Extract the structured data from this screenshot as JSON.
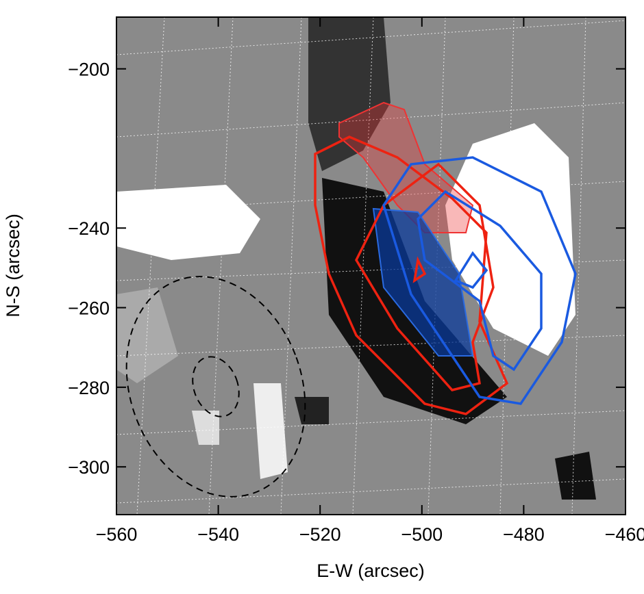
{
  "chart_data": {
    "type": "image",
    "xlabel": "E-W (arcsec)",
    "ylabel": "N-S (arcsec)",
    "xlim": [
      -560,
      -460
    ],
    "ylim": [
      -187,
      -312
    ],
    "xticks": [
      {
        "value": -560,
        "label": "−560"
      },
      {
        "value": -540,
        "label": "−540"
      },
      {
        "value": -520,
        "label": "−520"
      },
      {
        "value": -500,
        "label": "−500"
      },
      {
        "value": -480,
        "label": "−480"
      },
      {
        "value": -460,
        "label": "−460"
      }
    ],
    "yticks": [
      {
        "value": -200,
        "label": "−200"
      },
      {
        "value": -240,
        "label": "−240"
      },
      {
        "value": -260,
        "label": "−260"
      },
      {
        "value": -280,
        "label": "−280"
      },
      {
        "value": -300,
        "label": "−300"
      }
    ]
  }
}
